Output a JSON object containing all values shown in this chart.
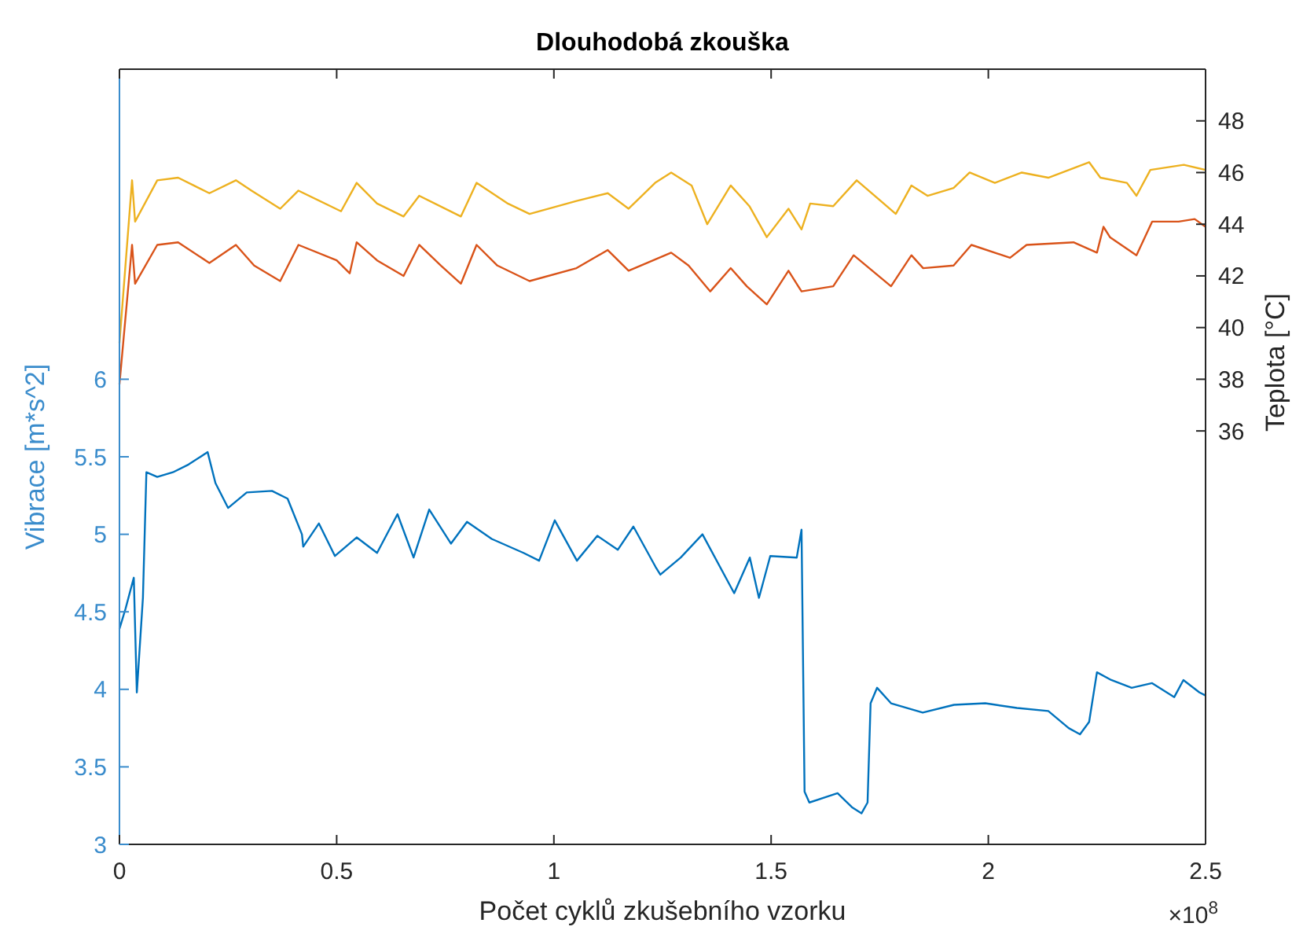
{
  "chart_data": {
    "type": "line",
    "title": "Dlouhodobá zkouška",
    "xlabel": "Počet cyklů zkušebního vzorku",
    "ylabel": "Vibrace  [m*s^2]",
    "y2label": "Teplota  [°C]",
    "annotations": [
      "×10$^{8}$"
    ],
    "xlim": [
      0,
      2.5
    ],
    "xticks": [
      0,
      0.5,
      1,
      1.5,
      2,
      2.5
    ],
    "ylim": [
      3,
      8
    ],
    "yticks": [
      3,
      3.5,
      4,
      4.5,
      5,
      5.5,
      6
    ],
    "y2lim": [
      20,
      50
    ],
    "y2ticks": [
      36,
      38,
      40,
      42,
      44,
      46,
      48
    ],
    "grid": false,
    "marker": "none",
    "line_style": "solid",
    "series": [
      {
        "color": "#0072bd",
        "x": [
          0,
          0.014,
          0.033,
          0.04,
          0.054,
          0.062,
          0.087,
          0.123,
          0.159,
          0.203,
          0.221,
          0.25,
          0.293,
          0.351,
          0.387,
          0.42,
          0.423,
          0.459,
          0.496,
          0.546,
          0.593,
          0.64,
          0.677,
          0.713,
          0.763,
          0.8,
          0.857,
          0.93,
          0.966,
          1.002,
          1.053,
          1.1,
          1.147,
          1.183,
          1.234,
          1.245,
          1.292,
          1.342,
          1.415,
          1.451,
          1.472,
          1.498,
          1.559,
          1.57,
          1.577,
          1.588,
          1.653,
          1.686,
          1.708,
          1.722,
          1.729,
          1.744,
          1.776,
          1.849,
          1.921,
          1.993,
          2.066,
          2.138,
          2.185,
          2.211,
          2.232,
          2.25,
          2.283,
          2.33,
          2.377,
          2.428,
          2.449,
          2.486,
          2.5
        ],
        "values": [
          4.39,
          4.52,
          4.72,
          3.98,
          4.59,
          5.4,
          5.37,
          5.4,
          5.45,
          5.53,
          5.33,
          5.17,
          5.27,
          5.28,
          5.23,
          5.0,
          4.92,
          5.07,
          4.86,
          4.98,
          4.88,
          5.13,
          4.85,
          5.16,
          4.94,
          5.08,
          4.97,
          4.88,
          4.83,
          5.09,
          4.83,
          4.99,
          4.9,
          5.05,
          4.79,
          4.74,
          4.85,
          5.0,
          4.62,
          4.85,
          4.59,
          4.86,
          4.85,
          5.03,
          3.34,
          3.27,
          3.33,
          3.24,
          3.2,
          3.27,
          3.91,
          4.01,
          3.91,
          3.85,
          3.9,
          3.91,
          3.88,
          3.86,
          3.75,
          3.71,
          3.79,
          4.11,
          4.06,
          4.01,
          4.04,
          3.95,
          4.06,
          3.98,
          3.96
        ]
      },
      {
        "color": "#d95319",
        "axis": "y2",
        "x": [
          0,
          0.029,
          0.036,
          0.087,
          0.135,
          0.207,
          0.268,
          0.31,
          0.37,
          0.412,
          0.5,
          0.53,
          0.546,
          0.593,
          0.654,
          0.69,
          0.74,
          0.786,
          0.822,
          0.87,
          0.944,
          1.052,
          1.124,
          1.172,
          1.27,
          1.31,
          1.36,
          1.407,
          1.444,
          1.49,
          1.54,
          1.57,
          1.643,
          1.69,
          1.776,
          1.823,
          1.85,
          1.92,
          1.961,
          2.05,
          2.088,
          2.196,
          2.25,
          2.265,
          2.28,
          2.341,
          2.377,
          2.438,
          2.475,
          2.5
        ],
        "values": [
          37.8,
          43.2,
          41.7,
          43.2,
          43.3,
          42.5,
          43.2,
          42.4,
          41.8,
          43.2,
          42.6,
          42.1,
          43.3,
          42.6,
          42.0,
          43.2,
          42.4,
          41.7,
          43.2,
          42.4,
          41.8,
          42.3,
          43.0,
          42.2,
          42.9,
          42.4,
          41.4,
          42.3,
          41.6,
          40.9,
          42.2,
          41.4,
          41.6,
          42.8,
          41.6,
          42.8,
          42.3,
          42.4,
          43.2,
          42.7,
          43.2,
          43.3,
          42.9,
          43.9,
          43.5,
          42.8,
          44.1,
          44.1,
          44.2,
          43.9
        ]
      },
      {
        "color": "#edb120",
        "axis": "y2",
        "x": [
          0,
          0.029,
          0.036,
          0.087,
          0.135,
          0.171,
          0.207,
          0.268,
          0.304,
          0.37,
          0.412,
          0.51,
          0.546,
          0.593,
          0.654,
          0.69,
          0.786,
          0.822,
          0.894,
          0.944,
          1.052,
          1.124,
          1.172,
          1.233,
          1.27,
          1.317,
          1.353,
          1.407,
          1.45,
          1.49,
          1.54,
          1.57,
          1.59,
          1.643,
          1.697,
          1.787,
          1.823,
          1.86,
          1.92,
          1.957,
          2.015,
          2.077,
          2.138,
          2.232,
          2.258,
          2.319,
          2.341,
          2.373,
          2.45,
          2.5
        ],
        "values": [
          39.4,
          45.7,
          44.1,
          45.7,
          45.8,
          45.5,
          45.2,
          45.7,
          45.3,
          44.6,
          45.3,
          44.5,
          45.6,
          44.8,
          44.3,
          45.1,
          44.3,
          45.6,
          44.8,
          44.4,
          44.9,
          45.2,
          44.6,
          45.6,
          46.0,
          45.5,
          44.0,
          45.5,
          44.7,
          43.5,
          44.6,
          43.8,
          44.8,
          44.7,
          45.7,
          44.4,
          45.5,
          45.1,
          45.4,
          46.0,
          45.6,
          46.0,
          45.8,
          46.4,
          45.8,
          45.6,
          45.1,
          46.1,
          46.3,
          46.1
        ]
      }
    ]
  }
}
